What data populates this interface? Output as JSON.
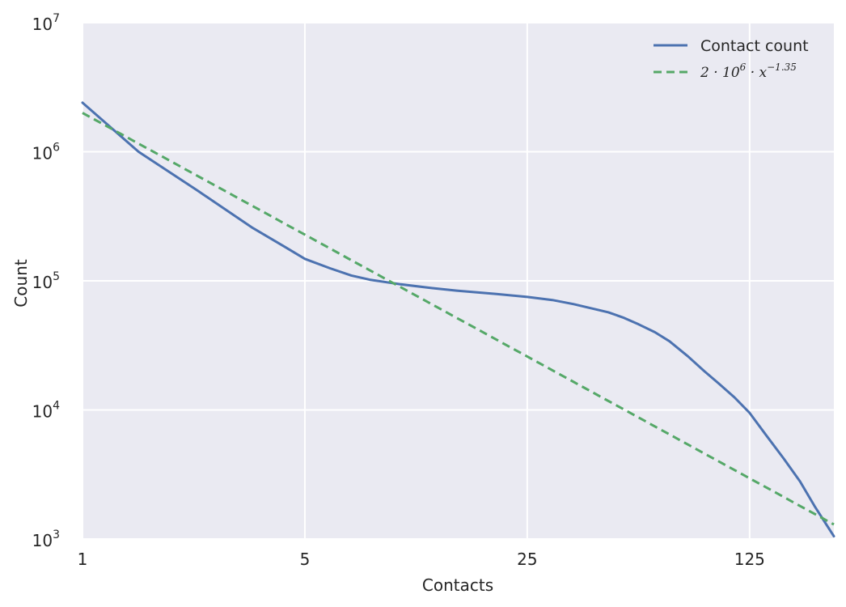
{
  "chart_data": {
    "type": "line",
    "xlabel": "Contacts",
    "ylabel": "Count",
    "xscale": "log",
    "yscale": "log",
    "xlim": [
      1,
      230
    ],
    "ylim": [
      1000,
      10000000
    ],
    "grid": true,
    "legend_position": "top-right",
    "x_ticks": [
      {
        "value": 1,
        "label": "1"
      },
      {
        "value": 5,
        "label": "5"
      },
      {
        "value": 25,
        "label": "25"
      },
      {
        "value": 125,
        "label": "125"
      }
    ],
    "y_ticks": [
      {
        "value": 1000,
        "base": "10",
        "exp": "3"
      },
      {
        "value": 10000,
        "base": "10",
        "exp": "4"
      },
      {
        "value": 100000,
        "base": "10",
        "exp": "5"
      },
      {
        "value": 1000000,
        "base": "10",
        "exp": "6"
      },
      {
        "value": 10000000,
        "base": "10",
        "exp": "7"
      }
    ],
    "series": [
      {
        "name": "Contact count",
        "color": "#4c72b0",
        "style": "solid",
        "points": [
          [
            1,
            2400000
          ],
          [
            1.5,
            1000000
          ],
          [
            2.3,
            500000
          ],
          [
            3.4,
            260000
          ],
          [
            4.3,
            185000
          ],
          [
            5,
            148000
          ],
          [
            6,
            125000
          ],
          [
            7,
            110000
          ],
          [
            8,
            102000
          ],
          [
            10,
            94000
          ],
          [
            12.5,
            88000
          ],
          [
            15,
            84000
          ],
          [
            20,
            79000
          ],
          [
            25,
            75000
          ],
          [
            30,
            71000
          ],
          [
            35,
            66000
          ],
          [
            40,
            61000
          ],
          [
            45,
            57000
          ],
          [
            50,
            52000
          ],
          [
            56,
            46000
          ],
          [
            63,
            40000
          ],
          [
            70,
            34000
          ],
          [
            80,
            26000
          ],
          [
            90,
            20000
          ],
          [
            100,
            16000
          ],
          [
            112,
            12500
          ],
          [
            125,
            9500
          ],
          [
            140,
            6500
          ],
          [
            160,
            4200
          ],
          [
            180,
            2800
          ],
          [
            200,
            1800
          ],
          [
            230,
            1050
          ]
        ]
      },
      {
        "name": "2·10⁶·x⁻¹·³⁵",
        "color": "#55a868",
        "style": "dashed",
        "model": {
          "a": 2000000,
          "b": -1.35
        }
      }
    ],
    "legend": [
      {
        "series": 0,
        "label": "Contact count"
      },
      {
        "series": 1,
        "parts": [
          "2 · 10",
          "6",
          " · x",
          "−1.35"
        ]
      }
    ]
  }
}
